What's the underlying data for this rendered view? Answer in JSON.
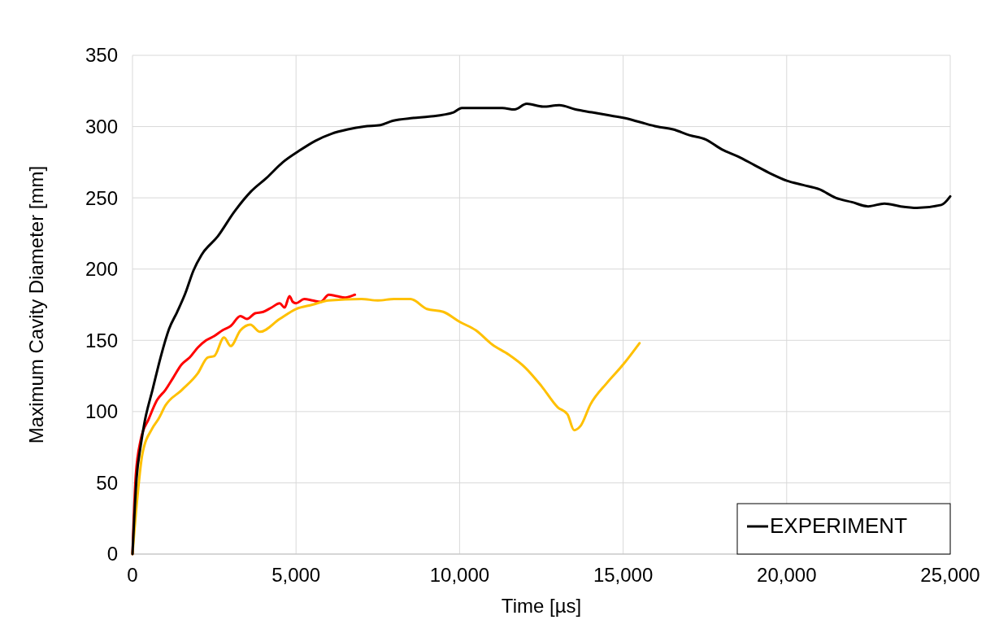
{
  "chart_data": {
    "type": "line",
    "xlabel": "Time [µs]",
    "ylabel": "Maximum Cavity Diameter [mm]",
    "xlim": [
      0,
      25000
    ],
    "xticks": [
      {
        "value": 0,
        "label": "0"
      },
      {
        "value": 5000,
        "label": "5,000"
      },
      {
        "value": 10000,
        "label": "10,000"
      },
      {
        "value": 15000,
        "label": "15,000"
      },
      {
        "value": 20000,
        "label": "20,000"
      },
      {
        "value": 25000,
        "label": "25,000"
      }
    ],
    "ylim": [
      0,
      350
    ],
    "yticks": [
      0,
      50,
      100,
      150,
      200,
      250,
      300,
      350
    ],
    "grid": true,
    "legend": "bottom right",
    "marker": "none",
    "line_style": "solid",
    "series": [
      {
        "color": "#ff0000",
        "x": [
          0,
          100,
          250,
          500,
          750,
          1000,
          1250,
          1500,
          1750,
          2000,
          2250,
          2500,
          2750,
          3000,
          3300,
          3500,
          3750,
          4000,
          4250,
          4500,
          4650,
          4800,
          4900,
          5000,
          5250,
          5500,
          5750,
          6000,
          6250,
          6500,
          6800
        ],
        "values": [
          0,
          55,
          80,
          95,
          108,
          115,
          124,
          133,
          138,
          145,
          150,
          153,
          157,
          160,
          167,
          165,
          169,
          170,
          173,
          176,
          173,
          181,
          177,
          176,
          179,
          178,
          177,
          182,
          181,
          180,
          182
        ]
      },
      {
        "color": "#ffc000",
        "x": [
          0,
          150,
          300,
          600,
          800,
          1000,
          1500,
          2000,
          2300,
          2500,
          2800,
          3000,
          3300,
          3600,
          3900,
          4500,
          5000,
          5500,
          6000,
          7000,
          7500,
          8000,
          8500,
          9000,
          9500,
          10000,
          10500,
          11000,
          11500,
          12000,
          12500,
          13000,
          13300,
          13500,
          13700,
          14000,
          14500,
          15000,
          15500
        ],
        "values": [
          0,
          40,
          70,
          88,
          95,
          104,
          115,
          127,
          138,
          139,
          152,
          146,
          157,
          161,
          156,
          165,
          172,
          175,
          178,
          179,
          178,
          179,
          179,
          172,
          170,
          163,
          157,
          147,
          140,
          131,
          118,
          103,
          98,
          87,
          90,
          105,
          120,
          133,
          148
        ]
      },
      {
        "name": "EXPERIMENT",
        "color": "#000000",
        "x": [
          0,
          124,
          250,
          373,
          620,
          870,
          1118,
          1367,
          1615,
          1864,
          2112,
          2609,
          3106,
          3604,
          4100,
          4597,
          5094,
          5591,
          6088,
          6585,
          7082,
          7579,
          7952,
          8573,
          9071,
          9816,
          10065,
          10562,
          11307,
          11680,
          12053,
          12550,
          13048,
          13545,
          14042,
          14539,
          15035,
          15532,
          16029,
          16526,
          17023,
          17520,
          18017,
          18514,
          19011,
          19508,
          20005,
          20502,
          20999,
          21496,
          21993,
          22490,
          22987,
          23484,
          23981,
          24727,
          25000
        ],
        "values": [
          0,
          53,
          76,
          93,
          116,
          139,
          158,
          170,
          183,
          199,
          210,
          223,
          240,
          254,
          264,
          275,
          283,
          290,
          295,
          298,
          300,
          301,
          304,
          306,
          307,
          310,
          313,
          313,
          313,
          312,
          316,
          314,
          315,
          312,
          310,
          308,
          306,
          303,
          300,
          298,
          294,
          291,
          284,
          279,
          273,
          267,
          262,
          259,
          256,
          250,
          247,
          244,
          246,
          244,
          243,
          245,
          251
        ]
      }
    ]
  }
}
